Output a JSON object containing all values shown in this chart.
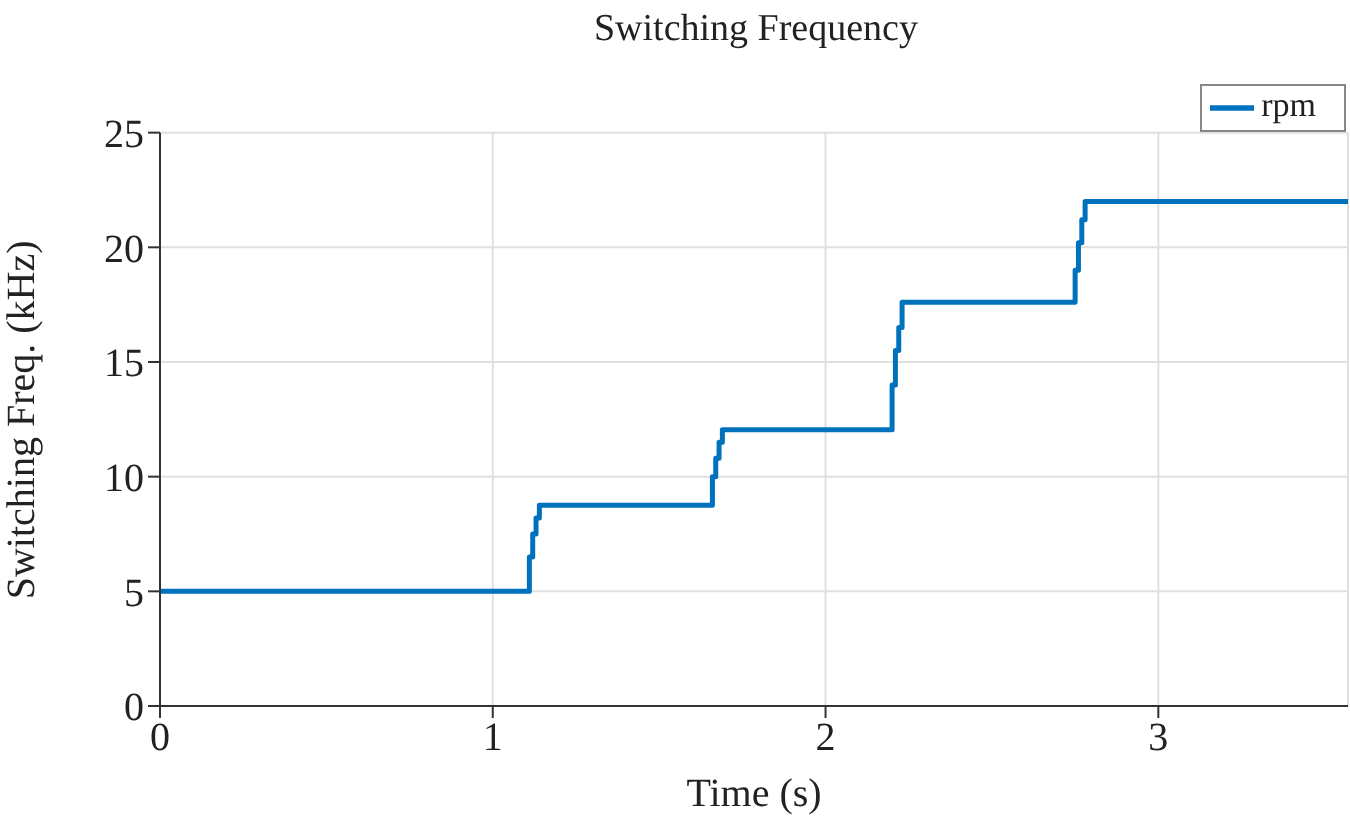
{
  "chart_data": {
    "type": "step",
    "title": "Switching Frequency",
    "xlabel": "Time (s)",
    "ylabel": "Switching Freq. (kHz)",
    "x": [
      0,
      1.1,
      1.11,
      1.12,
      1.13,
      1.14,
      1.65,
      1.66,
      1.67,
      1.68,
      1.69,
      2.19,
      2.2,
      2.21,
      2.22,
      2.23,
      2.74,
      2.75,
      2.76,
      2.77,
      2.78,
      3.57
    ],
    "series": [
      {
        "name": "rpm",
        "color": "#0072bd",
        "values": [
          5,
          5,
          6.5,
          7.5,
          8.2,
          8.75,
          8.75,
          10,
          10.8,
          11.5,
          12.05,
          12.05,
          14,
          15.5,
          16.5,
          17.6,
          17.6,
          19,
          20.2,
          21.2,
          22,
          22
        ]
      }
    ],
    "xlim": [
      0,
      3.57
    ],
    "xticks": [
      0,
      1,
      2,
      3
    ],
    "ylim": [
      0,
      25
    ],
    "yticks": [
      0,
      5,
      10,
      15,
      20,
      25
    ],
    "grid": true,
    "legend": "top right",
    "marker": "none",
    "line_style": "solid"
  }
}
